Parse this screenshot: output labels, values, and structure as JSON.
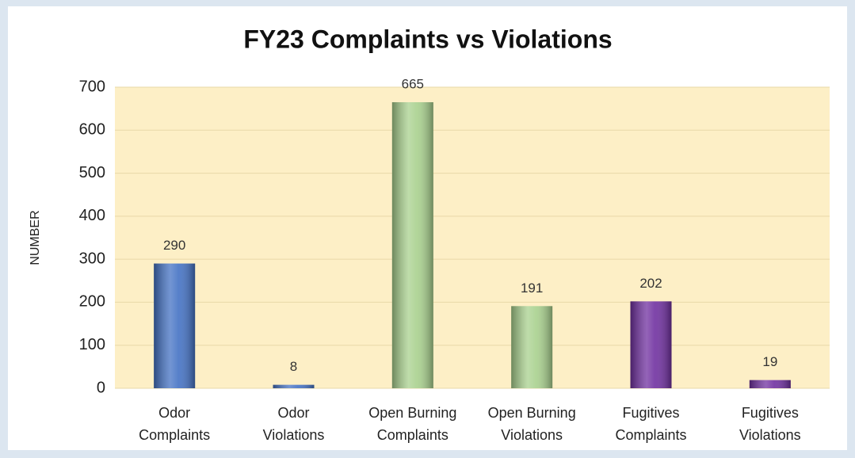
{
  "chart_data": {
    "type": "bar",
    "title": "FY23 Complaints vs Violations",
    "y_label": "NUMBER",
    "categories": [
      [
        "Odor",
        "Complaints"
      ],
      [
        "Odor",
        "Violations"
      ],
      [
        "Open Burning",
        "Complaints"
      ],
      [
        "Open Burning",
        "Violations"
      ],
      [
        "Fugitives",
        "Complaints"
      ],
      [
        "Fugitives",
        "Violations"
      ]
    ],
    "values": [
      290,
      8,
      665,
      191,
      202,
      19
    ],
    "colors": [
      "#4472c4",
      "#4472c4",
      "#a9d18e",
      "#a9d18e",
      "#7030a0",
      "#7030a0"
    ],
    "ylim": [
      0,
      700
    ],
    "yticks": [
      0,
      100,
      200,
      300,
      400,
      500,
      600,
      700
    ],
    "grid": true
  }
}
